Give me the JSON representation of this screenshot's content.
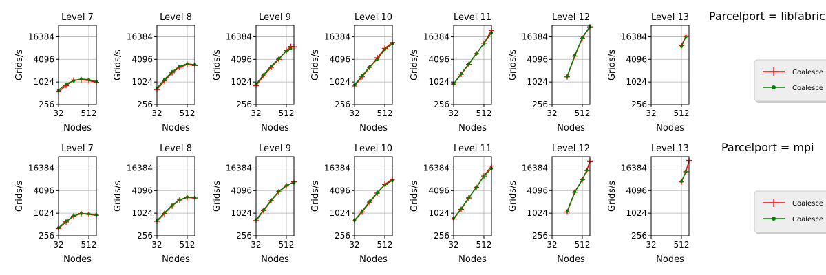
{
  "chart_data": {
    "type": "line",
    "axis": {
      "xlabel": "Nodes",
      "ylabel": "Grids/s",
      "xscale": "log2",
      "yscale": "log2",
      "xlim": [
        32,
        1024
      ],
      "ylim": [
        256,
        32768
      ],
      "xticks": [
        "32",
        "512"
      ],
      "yticks": [
        "256",
        "1024",
        "4096",
        "16384"
      ],
      "grid": true
    },
    "series_styles": [
      {
        "label": "Coalesce",
        "color": "#ff0000",
        "marker": "plus"
      },
      {
        "label": "Coalesce",
        "color": "#008000",
        "marker": "dot"
      }
    ],
    "rows": [
      {
        "title": "Parcelport = libfabric",
        "panels": [
          {
            "title": "Level 7",
            "x": [
              32,
              64,
              128,
              256,
              512,
              1024
            ],
            "red": [
              560,
              820,
              1150,
              1180,
              1120,
              1000
            ],
            "green": [
              620,
              900,
              1100,
              1230,
              1180,
              1050
            ]
          },
          {
            "title": "Level 8",
            "x": [
              32,
              64,
              128,
              256,
              512,
              1024
            ],
            "red": [
              640,
              1100,
              1800,
              2500,
              3000,
              2800
            ],
            "green": [
              700,
              1200,
              1900,
              2700,
              3100,
              2950
            ]
          },
          {
            "title": "Level 9",
            "x": [
              32,
              64,
              128,
              256,
              512,
              768,
              1024
            ],
            "red": [
              820,
              1500,
              2500,
              4100,
              7000,
              9000,
              8800
            ],
            "green": [
              900,
              1600,
              2700,
              4300,
              6800,
              8000,
              null
            ]
          },
          {
            "title": "Level 10",
            "x": [
              32,
              64,
              128,
              256,
              512,
              1024
            ],
            "red": [
              800,
              1400,
              2500,
              4500,
              8000,
              11500
            ],
            "green": [
              850,
              1500,
              2600,
              4100,
              7500,
              10500
            ]
          },
          {
            "title": "Level 11",
            "x": [
              32,
              64,
              128,
              256,
              512,
              1024
            ],
            "red": [
              900,
              1650,
              3000,
              5800,
              11000,
              24000
            ],
            "green": [
              920,
              1700,
              3100,
              5800,
              10800,
              21000
            ]
          },
          {
            "title": "Level 12",
            "x": [
              128,
              256,
              512,
              1024
            ],
            "red": [
              1400,
              5000,
              15000,
              30000
            ],
            "green": [
              1450,
              5200,
              15500,
              31000
            ]
          },
          {
            "title": "Level 13",
            "x": [
              512,
              768
            ],
            "red": [
              9500,
              17000
            ],
            "green": [
              9000,
              16500
            ]
          }
        ],
        "legend": [
          "Coalesce",
          "Coalesce"
        ]
      },
      {
        "title": "Parcelport = mpi",
        "panels": [
          {
            "title": "Level 7",
            "x": [
              32,
              64,
              128,
              256,
              512,
              1024
            ],
            "red": [
              400,
              600,
              850,
              1000,
              950,
              900
            ],
            "green": [
              420,
              620,
              870,
              1000,
              980,
              930
            ]
          },
          {
            "title": "Level 8",
            "x": [
              32,
              64,
              128,
              256,
              512,
              1024
            ],
            "red": [
              620,
              1000,
              1600,
              2300,
              2700,
              2600
            ],
            "green": [
              650,
              1050,
              1650,
              2350,
              2750,
              2650
            ]
          },
          {
            "title": "Level 9",
            "x": [
              32,
              64,
              128,
              256,
              512,
              1024
            ],
            "red": [
              650,
              1200,
              2200,
              3800,
              5500,
              7000
            ],
            "green": [
              680,
              1250,
              2300,
              3900,
              5600,
              6800
            ]
          },
          {
            "title": "Level 10",
            "x": [
              32,
              64,
              128,
              256,
              512,
              1024
            ],
            "red": [
              640,
              1100,
              2000,
              3500,
              6000,
              8200
            ],
            "green": [
              660,
              1150,
              2100,
              3600,
              5800,
              7600
            ]
          },
          {
            "title": "Level 11",
            "x": [
              32,
              64,
              128,
              256,
              512,
              1024
            ],
            "red": [
              720,
              1300,
              2600,
              5000,
              10000,
              18500
            ],
            "green": [
              740,
              1350,
              2650,
              5000,
              9800,
              16000
            ]
          },
          {
            "title": "Level 12",
            "x": [
              128,
              256,
              512,
              768,
              1024
            ],
            "red": [
              1100,
              3700,
              8000,
              14000,
              25000
            ],
            "green": [
              1150,
              3800,
              8100,
              14200,
              null
            ]
          },
          {
            "title": "Level 13",
            "x": [
              512,
              768,
              1024
            ],
            "red": [
              7000,
              13000,
              26000
            ],
            "green": [
              7200,
              13000,
              null
            ]
          }
        ],
        "legend": [
          "Coalesce",
          "Coalesce"
        ]
      }
    ]
  }
}
